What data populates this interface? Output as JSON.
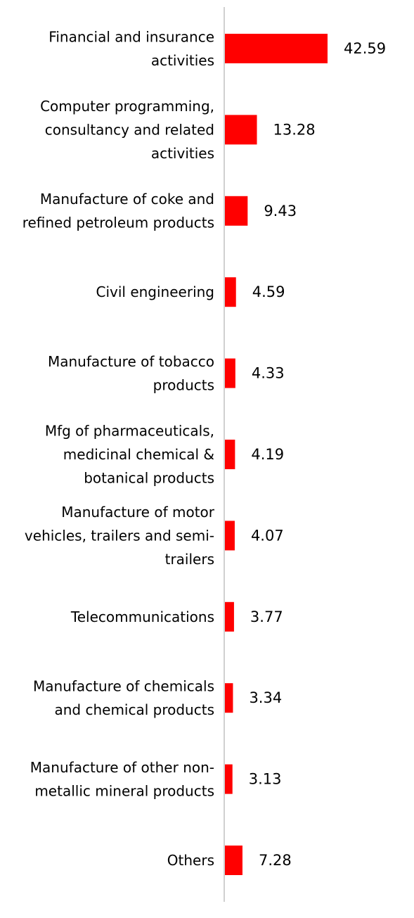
{
  "chart_data": {
    "type": "bar",
    "orientation": "horizontal",
    "title": "",
    "xlabel": "",
    "ylabel": "",
    "categories": [
      [
        "Financial and insurance",
        "activities"
      ],
      [
        "Computer programming,",
        "consultancy and related",
        "activities"
      ],
      [
        "Manufacture of coke and",
        "refined petroleum products"
      ],
      [
        "Civil engineering"
      ],
      [
        "Manufacture of tobacco",
        "products"
      ],
      [
        "Mfg of pharmaceuticals,",
        "medicinal chemical &",
        "botanical products"
      ],
      [
        "Manufacture of motor",
        "vehicles, trailers and semi-",
        "trailers"
      ],
      [
        "Telecommunications"
      ],
      [
        "Manufacture of chemicals",
        "and chemical products"
      ],
      [
        "Manufacture of other non-",
        "metallic mineral products"
      ],
      [
        "Others"
      ]
    ],
    "values": [
      42.59,
      13.28,
      9.43,
      4.59,
      4.33,
      4.19,
      4.07,
      3.77,
      3.34,
      3.13,
      7.28
    ],
    "value_labels": [
      "42.59",
      "13.28",
      "9.43",
      "4.59",
      "4.33",
      "4.19",
      "4.07",
      "3.77",
      "3.34",
      "3.13",
      "7.28"
    ],
    "xlim": [
      0,
      42.59
    ],
    "grid": false,
    "legend": "none",
    "bar_color": "#ff0000",
    "axis_color": "#d0d0d0"
  }
}
